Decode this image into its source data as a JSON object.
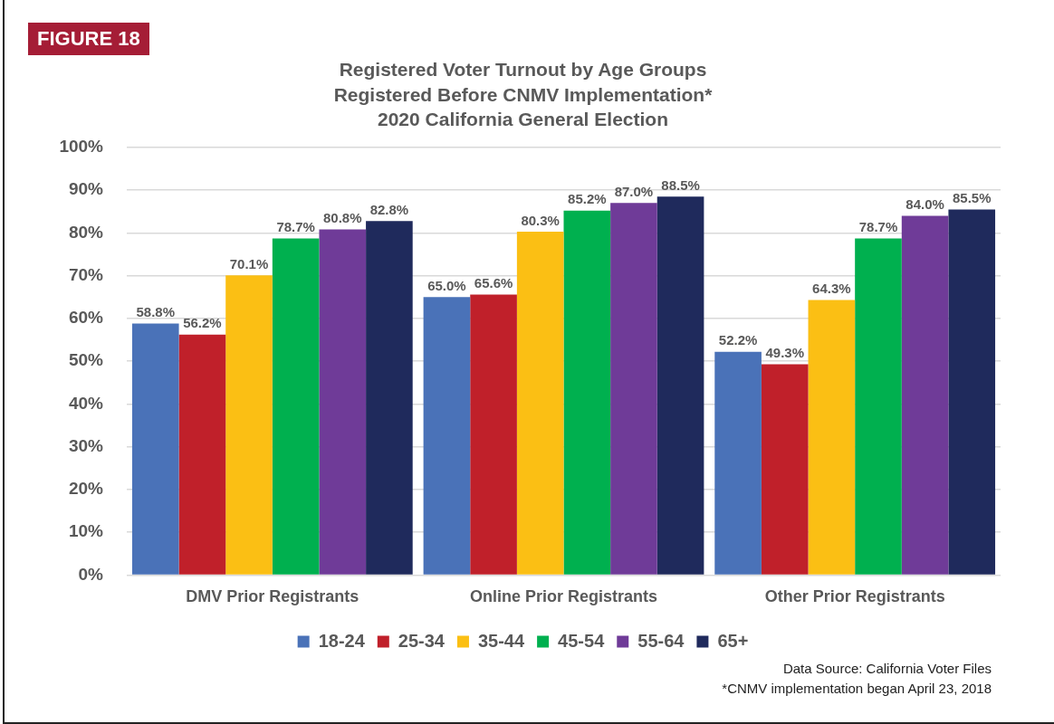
{
  "chart_data": {
    "type": "bar",
    "title": "Registered Voter Turnout by Age Groups\nRegistered Before CNMV Implementation*\n2020 California General Election",
    "categories": [
      "DMV Prior Registrants",
      "Online Prior Registrants",
      "Other Prior Registrants"
    ],
    "series": [
      {
        "name": "18-24",
        "color": "#4a72b8",
        "values": [
          58.8,
          65.0,
          52.2
        ],
        "value_labels": [
          "58.8%",
          "65.0%",
          "52.2%"
        ]
      },
      {
        "name": "25-34",
        "color": "#c0202a",
        "values": [
          56.2,
          65.6,
          49.3
        ],
        "value_labels": [
          "56.2%",
          "65.6%",
          "49.3%"
        ]
      },
      {
        "name": "35-44",
        "color": "#fbbf14",
        "values": [
          70.1,
          80.3,
          64.3
        ],
        "value_labels": [
          "70.1%",
          "80.3%",
          "64.3%"
        ]
      },
      {
        "name": "45-54",
        "color": "#00b04f",
        "values": [
          78.7,
          85.2,
          78.7
        ],
        "value_labels": [
          "78.7%",
          "85.2%",
          "78.7%"
        ]
      },
      {
        "name": "55-64",
        "color": "#6f3b98",
        "values": [
          80.8,
          87.0,
          84.0
        ],
        "value_labels": [
          "80.8%",
          "87.0%",
          "84.0%"
        ]
      },
      {
        "name": "65+",
        "color": "#1f2a5c",
        "values": [
          82.8,
          88.5,
          85.5
        ],
        "value_labels": [
          "82.8%",
          "88.5%",
          "85.5%"
        ]
      }
    ],
    "ylim": [
      0,
      100
    ],
    "yticks": [
      {
        "value": 0,
        "label": "0%"
      },
      {
        "value": 10,
        "label": "10%"
      },
      {
        "value": 20,
        "label": "20%"
      },
      {
        "value": 30,
        "label": "30%"
      },
      {
        "value": 40,
        "label": "40%"
      },
      {
        "value": 50,
        "label": "50%"
      },
      {
        "value": 60,
        "label": "60%"
      },
      {
        "value": 70,
        "label": "70%"
      },
      {
        "value": 80,
        "label": "80%"
      },
      {
        "value": 90,
        "label": "90%"
      },
      {
        "value": 100,
        "label": "100%"
      }
    ],
    "grid": "y",
    "legend": "bottom",
    "annotations": [
      "FIGURE 18",
      "Data Source: California Voter Files",
      "*CNMV implementation began April 23, 2018"
    ]
  }
}
